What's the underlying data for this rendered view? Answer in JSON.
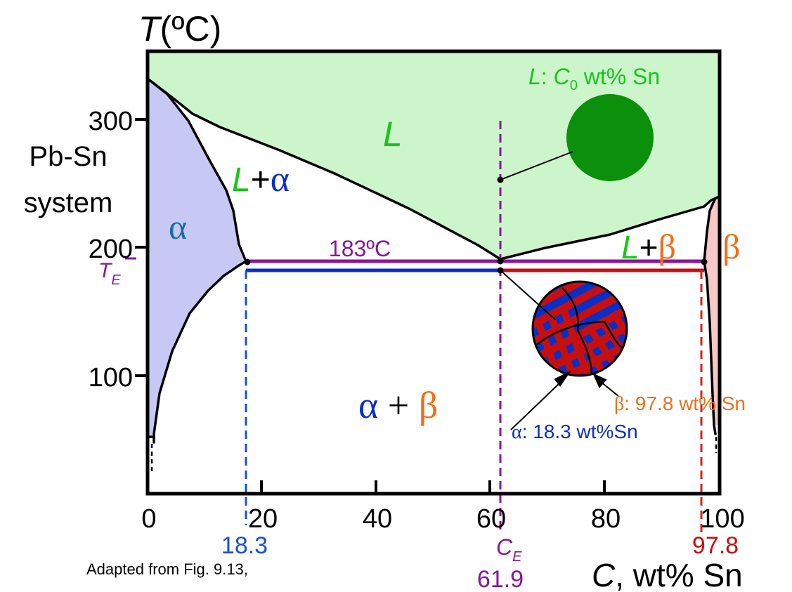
{
  "axes": {
    "y_title_var": "T",
    "y_title_unit": "(ºC)",
    "x_title_var": "C",
    "x_title_unit": ", wt% Sn",
    "x_ticks": [
      "0",
      "20",
      "40",
      "60",
      "80",
      "100"
    ],
    "y_ticks": [
      "300",
      "200",
      "100"
    ]
  },
  "system_label": [
    "Pb-Sn",
    "system"
  ],
  "regions": {
    "L": "L",
    "L_alpha_L": "L",
    "L_alpha_plus": "+",
    "L_alpha_alpha": "α",
    "alpha": "α",
    "beta": "β",
    "L_beta_L": "L",
    "L_beta_plus": "+",
    "L_beta_beta": "β",
    "ab_alpha": "α",
    "ab_plus": " + ",
    "ab_beta": "β"
  },
  "eutectic": {
    "temperature_label": "183ºC",
    "te_var": "T",
    "te_sub": "E",
    "ce_var": "C",
    "ce_sub": "E",
    "ce_value": "61.9",
    "alpha_comp": "18.3",
    "beta_comp": "97.8"
  },
  "annotations": {
    "liquid_L": "L",
    "liquid_colon": ":  ",
    "liquid_C": "C",
    "liquid_sub": "0",
    "liquid_rest": " wt% Sn",
    "beta_sym": "β",
    "beta_rest": ": 97.8 wt% Sn",
    "alpha_sym": "α",
    "alpha_rest": ": 18.3 wt%Sn"
  },
  "source_note": "Adapted from Fig. 9.13,",
  "colors": {
    "liquid_fill": "#ccf5cc",
    "alpha_fill": "#c8c8f5",
    "beta_fill": "#f7c8c8",
    "green_text": "#17c617",
    "blue": "#0a2fc4",
    "red": "#c80f0f",
    "purple": "#8a159a",
    "orange": "#f06e19",
    "dark_green": "#0a900a"
  }
}
